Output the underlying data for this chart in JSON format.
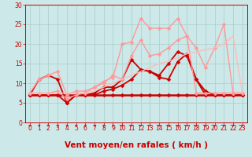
{
  "background_color": "#cce8e8",
  "grid_color": "#aacccc",
  "xlabel": "Vent moyen/en rafales ( km/h )",
  "xlim": [
    -0.5,
    23.5
  ],
  "ylim": [
    0,
    30
  ],
  "yticks": [
    0,
    5,
    10,
    15,
    20,
    25,
    30
  ],
  "xticks": [
    0,
    1,
    2,
    3,
    4,
    5,
    6,
    7,
    8,
    9,
    10,
    11,
    12,
    13,
    14,
    15,
    16,
    17,
    18,
    19,
    20,
    21,
    22,
    23
  ],
  "series": [
    {
      "x": [
        0,
        1,
        2,
        3,
        4,
        5,
        6,
        7,
        8,
        9,
        10,
        11,
        12,
        13,
        14,
        15,
        16,
        17,
        18,
        19,
        20,
        21,
        22,
        23
      ],
      "y": [
        7,
        7,
        7,
        7,
        7,
        7,
        7,
        7,
        7,
        7,
        7,
        7,
        7,
        7,
        7,
        7,
        7,
        7,
        7,
        7,
        7,
        7,
        7,
        7
      ],
      "color": "#cc0000",
      "linewidth": 1.8,
      "marker": "D",
      "markersize": 2.5
    },
    {
      "x": [
        0,
        1,
        2,
        3,
        4,
        5,
        6,
        7,
        8,
        9,
        10,
        11,
        12,
        13,
        14,
        15,
        16,
        17,
        18,
        19,
        20,
        21,
        22,
        23
      ],
      "y": [
        7,
        7,
        7,
        7,
        5,
        7,
        7,
        7,
        8,
        8.5,
        9.5,
        11,
        13.5,
        13,
        11.5,
        11,
        15.5,
        17.5,
        11,
        8,
        7,
        7,
        7,
        7
      ],
      "color": "#cc0000",
      "linewidth": 1.3,
      "marker": "D",
      "markersize": 2.5
    },
    {
      "x": [
        0,
        1,
        2,
        3,
        4,
        5,
        6,
        7,
        8,
        9,
        10,
        11,
        12,
        13,
        14,
        15,
        16,
        17,
        18,
        19,
        20,
        21,
        22,
        23
      ],
      "y": [
        7,
        11,
        12,
        11,
        5,
        7,
        7,
        7.5,
        9,
        9,
        11,
        16,
        13.5,
        13,
        12,
        15,
        18,
        17,
        11,
        7,
        7,
        7,
        7,
        7
      ],
      "color": "#cc0000",
      "linewidth": 1.3,
      "marker": "D",
      "markersize": 2.5
    },
    {
      "x": [
        0,
        1,
        2,
        3,
        4,
        5,
        6,
        7,
        8,
        9,
        10,
        11,
        12,
        13,
        14,
        15,
        16,
        17,
        18,
        19,
        20,
        21,
        22,
        23
      ],
      "y": [
        7.5,
        7.5,
        7.5,
        8,
        6,
        7,
        7.5,
        9,
        10.5,
        11.5,
        20,
        20.5,
        26.5,
        24,
        24,
        24,
        26.5,
        22,
        7.5,
        7.5,
        7.5,
        7.5,
        7.5,
        7.5
      ],
      "color": "#ff9999",
      "linewidth": 1.0,
      "marker": "D",
      "markersize": 2.5
    },
    {
      "x": [
        0,
        1,
        2,
        3,
        4,
        5,
        6,
        7,
        8,
        9,
        10,
        11,
        12,
        13,
        14,
        15,
        16,
        17,
        18,
        19,
        20,
        21,
        22,
        23
      ],
      "y": [
        7.5,
        11,
        12,
        13,
        7,
        8,
        8,
        9,
        10,
        12,
        11,
        17,
        21,
        17,
        17.5,
        19,
        21,
        22,
        19,
        14,
        19,
        25,
        7.5,
        7.5
      ],
      "color": "#ff9999",
      "linewidth": 1.0,
      "marker": "D",
      "markersize": 2.5
    },
    {
      "x": [
        0,
        1,
        2,
        3,
        4,
        5,
        6,
        7,
        8,
        9,
        10,
        11,
        12,
        13,
        14,
        15,
        16,
        17,
        18,
        19,
        20,
        21,
        22,
        23
      ],
      "y": [
        7.5,
        7.5,
        7.5,
        7.5,
        7.5,
        7.5,
        7.5,
        8,
        9,
        10,
        11,
        12,
        13,
        14,
        15,
        15.5,
        16.5,
        17.5,
        18,
        18.5,
        19,
        20,
        22,
        7.5
      ],
      "color": "#ffbbbb",
      "linewidth": 1.0,
      "marker": null,
      "markersize": 0
    }
  ],
  "tick_fontsize": 5.5,
  "xlabel_fontsize": 7.5
}
